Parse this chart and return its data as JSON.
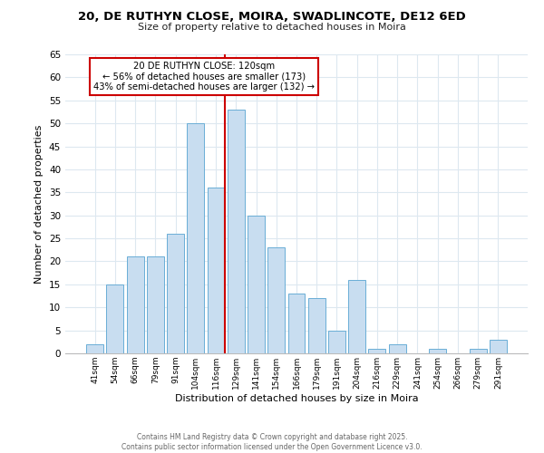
{
  "title": "20, DE RUTHYN CLOSE, MOIRA, SWADLINCOTE, DE12 6ED",
  "subtitle": "Size of property relative to detached houses in Moira",
  "xlabel": "Distribution of detached houses by size in Moira",
  "ylabel": "Number of detached properties",
  "bar_labels": [
    "41sqm",
    "54sqm",
    "66sqm",
    "79sqm",
    "91sqm",
    "104sqm",
    "116sqm",
    "129sqm",
    "141sqm",
    "154sqm",
    "166sqm",
    "179sqm",
    "191sqm",
    "204sqm",
    "216sqm",
    "229sqm",
    "241sqm",
    "254sqm",
    "266sqm",
    "279sqm",
    "291sqm"
  ],
  "bar_values": [
    2,
    15,
    21,
    21,
    26,
    50,
    36,
    53,
    30,
    23,
    13,
    12,
    5,
    16,
    1,
    2,
    0,
    1,
    0,
    1,
    3
  ],
  "bar_color": "#c8ddf0",
  "bar_edge_color": "#6aaed6",
  "highlight_index": 6,
  "highlight_line_color": "#cc0000",
  "ylim": [
    0,
    65
  ],
  "yticks": [
    0,
    5,
    10,
    15,
    20,
    25,
    30,
    35,
    40,
    45,
    50,
    55,
    60,
    65
  ],
  "annotation_title": "20 DE RUTHYN CLOSE: 120sqm",
  "annotation_line1": "← 56% of detached houses are smaller (173)",
  "annotation_line2": "43% of semi-detached houses are larger (132) →",
  "annotation_box_color": "#ffffff",
  "annotation_box_edge": "#cc0000",
  "footer_line1": "Contains HM Land Registry data © Crown copyright and database right 2025.",
  "footer_line2": "Contains public sector information licensed under the Open Government Licence v3.0.",
  "grid_color": "#dde8f0",
  "background_color": "#ffffff"
}
